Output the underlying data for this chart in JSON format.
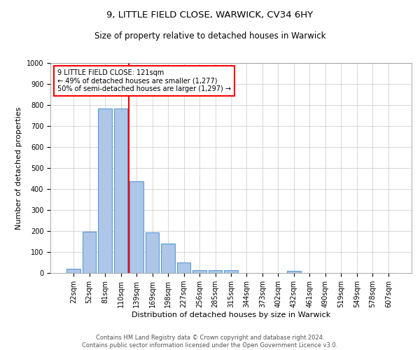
{
  "title_line1": "9, LITTLE FIELD CLOSE, WARWICK, CV34 6HY",
  "title_line2": "Size of property relative to detached houses in Warwick",
  "xlabel": "Distribution of detached houses by size in Warwick",
  "ylabel": "Number of detached properties",
  "footer": "Contains HM Land Registry data © Crown copyright and database right 2024.\nContains public sector information licensed under the Open Government Licence v3.0.",
  "bin_labels": [
    "22sqm",
    "52sqm",
    "81sqm",
    "110sqm",
    "139sqm",
    "169sqm",
    "198sqm",
    "227sqm",
    "256sqm",
    "285sqm",
    "315sqm",
    "344sqm",
    "373sqm",
    "402sqm",
    "432sqm",
    "461sqm",
    "490sqm",
    "519sqm",
    "549sqm",
    "578sqm",
    "607sqm"
  ],
  "bar_heights": [
    20,
    197,
    783,
    783,
    438,
    192,
    141,
    50,
    15,
    13,
    13,
    0,
    0,
    0,
    10,
    0,
    0,
    0,
    0,
    0,
    0
  ],
  "bar_color": "#aec6e8",
  "bar_edge_color": "#5b9bd5",
  "vline_x": 3.5,
  "vline_color": "red",
  "ylim": [
    0,
    1000
  ],
  "yticks": [
    0,
    100,
    200,
    300,
    400,
    500,
    600,
    700,
    800,
    900,
    1000
  ],
  "annotation_text": "9 LITTLE FIELD CLOSE: 121sqm\n← 49% of detached houses are smaller (1,277)\n50% of semi-detached houses are larger (1,297) →",
  "annotation_box_color": "red",
  "grid_color": "#c8c8c8",
  "title1_fontsize": 9.5,
  "title2_fontsize": 8.5,
  "ylabel_fontsize": 8,
  "xlabel_fontsize": 8,
  "tick_fontsize": 7,
  "footer_fontsize": 6,
  "annot_fontsize": 7
}
